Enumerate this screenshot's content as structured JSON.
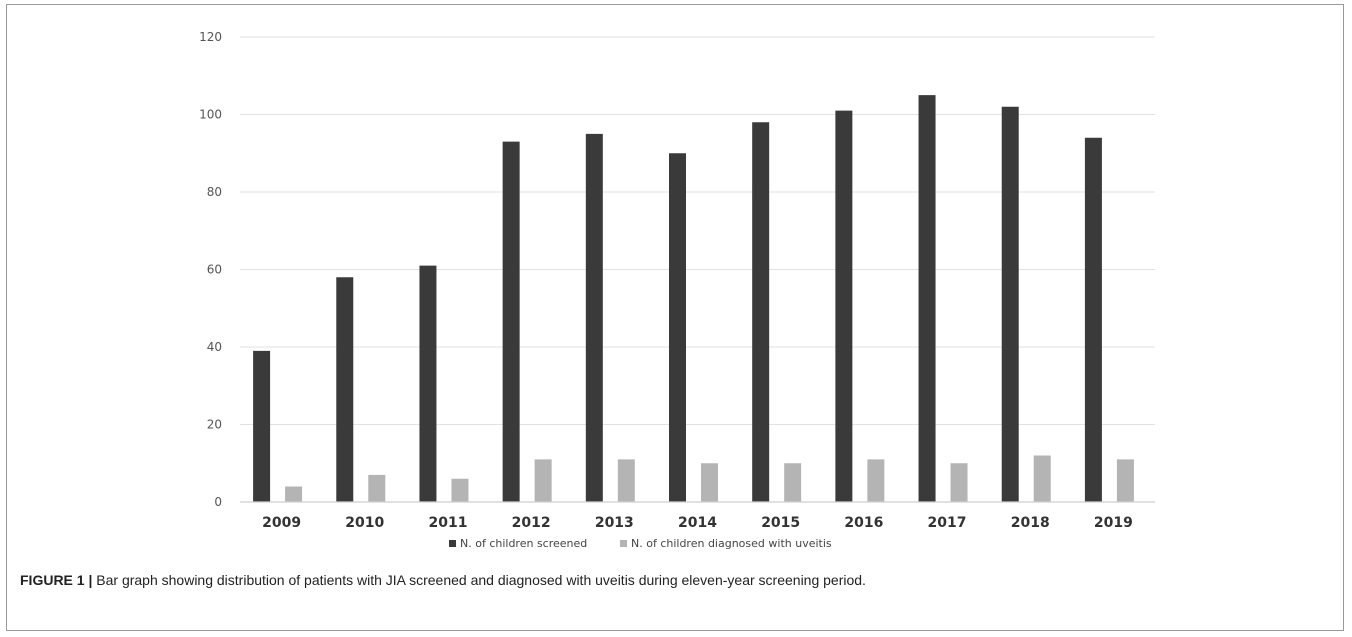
{
  "caption": {
    "label": "FIGURE 1 |",
    "text": "Bar graph showing distribution of patients with JIA screened and diagnosed with uveitis during eleven-year screening period."
  },
  "chart_data": {
    "type": "bar",
    "title": "",
    "xlabel": "",
    "ylabel": "",
    "ylim": [
      0,
      120
    ],
    "yticks": [
      0,
      20,
      40,
      60,
      80,
      100,
      120
    ],
    "grid": true,
    "legend_position": "bottom",
    "categories": [
      "2009",
      "2010",
      "2011",
      "2012",
      "2013",
      "2014",
      "2015",
      "2016",
      "2017",
      "2018",
      "2019"
    ],
    "series": [
      {
        "name": "N. of children screened",
        "color": "#3a3a3a",
        "values": [
          39,
          58,
          61,
          93,
          95,
          90,
          98,
          101,
          105,
          102,
          94
        ]
      },
      {
        "name": "N. of children diagnosed with uveitis",
        "color": "#b4b4b4",
        "values": [
          4,
          7,
          6,
          11,
          11,
          10,
          10,
          11,
          10,
          12,
          11
        ]
      }
    ]
  }
}
